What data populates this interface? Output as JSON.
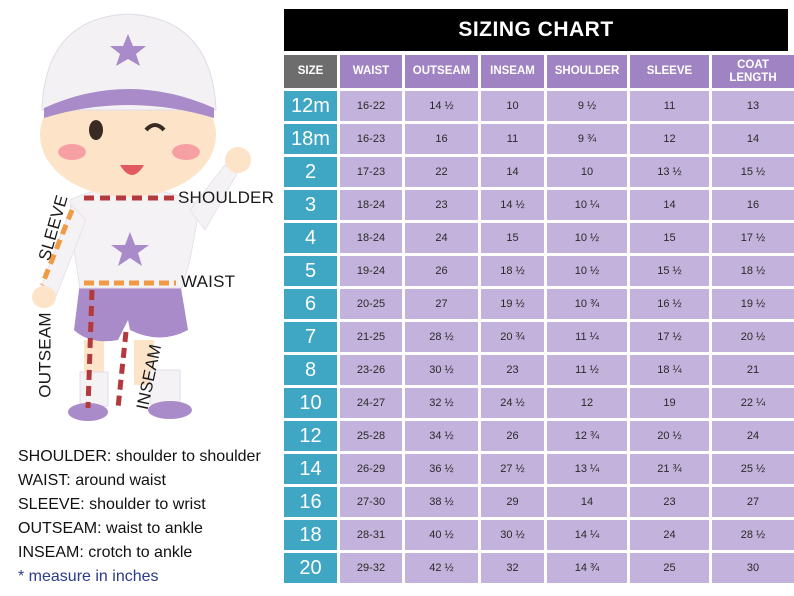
{
  "chart": {
    "title": "SIZING CHART",
    "headers": [
      "SIZE",
      "WAIST",
      "OUTSEAM",
      "INSEAM",
      "SHOULDER",
      "SLEEVE",
      "COAT LENGTH"
    ],
    "rows": [
      [
        "12m",
        "16-22",
        "14 ½",
        "10",
        "9 ½",
        "11",
        "13"
      ],
      [
        "18m",
        "16-23",
        "16",
        "11",
        "9 ¾",
        "12",
        "14"
      ],
      [
        "2",
        "17-23",
        "22",
        "14",
        "10",
        "13 ½",
        "15 ½"
      ],
      [
        "3",
        "18-24",
        "23",
        "14 ½",
        "10 ¼",
        "14",
        "16"
      ],
      [
        "4",
        "18-24",
        "24",
        "15",
        "10 ½",
        "15",
        "17 ½"
      ],
      [
        "5",
        "19-24",
        "26",
        "18 ½",
        "10 ½",
        "15 ½",
        "18 ½"
      ],
      [
        "6",
        "20-25",
        "27",
        "19 ½",
        "10 ¾",
        "16 ½",
        "19 ½"
      ],
      [
        "7",
        "21-25",
        "28 ½",
        "20 ¾",
        "11 ¼",
        "17 ½",
        "20 ½"
      ],
      [
        "8",
        "23-26",
        "30 ½",
        "23",
        "11 ½",
        "18 ¼",
        "21"
      ],
      [
        "10",
        "24-27",
        "32 ½",
        "24 ½",
        "12",
        "19",
        "22 ¼"
      ],
      [
        "12",
        "25-28",
        "34 ½",
        "26",
        "12 ¾",
        "20 ½",
        "24"
      ],
      [
        "14",
        "26-29",
        "36 ½",
        "27 ½",
        "13 ¼",
        "21 ¾",
        "25 ½"
      ],
      [
        "16",
        "27-30",
        "38 ½",
        "29",
        "14",
        "23",
        "27"
      ],
      [
        "18",
        "28-31",
        "40 ½",
        "30 ½",
        "14 ¼",
        "24",
        "28 ½"
      ],
      [
        "20",
        "29-32",
        "42 ½",
        "32",
        "14 ¾",
        "25",
        "30"
      ]
    ]
  },
  "figure": {
    "labels": {
      "shoulder": "SHOULDER",
      "waist": "WAIST",
      "sleeve": "SLEEVE",
      "outseam": "OUTSEAM",
      "inseam": "INSEAM"
    },
    "colors": {
      "helmet": "#f3f1f4",
      "accent_purple": "#a98bc9",
      "shirt": "#f4f2f5",
      "shorts": "#a98bc9",
      "skin": "#fde3c8",
      "cheeks": "#f6a0a3",
      "measure_dash_red": "#b3393c",
      "measure_dash_orange": "#f19a45"
    }
  },
  "legend": {
    "lines": [
      "SHOULDER: shoulder to shoulder",
      "WAIST: around waist",
      "SLEEVE: shoulder to wrist",
      "OUTSEAM: waist to ankle",
      "INSEAM: crotch to ankle"
    ],
    "note": "* measure in inches"
  },
  "colors": {
    "title_bg": "#000000",
    "header_bg": "#a083c2",
    "size_header_bg": "#6d6d6d",
    "size_cell_bg": "#3fa6c4",
    "cell_bg": "#c3b2db"
  }
}
